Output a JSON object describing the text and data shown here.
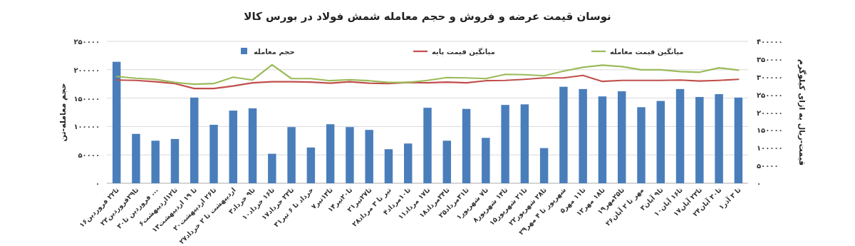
{
  "chart_data": {
    "type": "bar",
    "title": "نوسان قیمت عرضه و فروش و حجم معامله شمش فولاد در بورس کالا",
    "ylabel": "حجم معامله-تن",
    "y2label": "قیمت-ریال به ازای کیلوگرم",
    "categories": [
      "۱۶تا۲۲ فروردین",
      "۲۳تا۲۹فروردین",
      "۳۰فروردین تا ...",
      "۶تا۱۲اردیبهشت",
      "۱۳تا ۱۹ اردیبهشت",
      "۲۰تا۲۶ اردیبهشت",
      "۲۷اردیبهشت تا ۲ خرداد",
      "۳تا۹ خرداد",
      "۱۰تا۱۶ خرداد",
      "۱۷تا۲۳ خرداد",
      "۳۱خرداد تا ۶ تیر",
      "۷تا۱۳تیر",
      "۱۴تا۲۰تیر",
      "۲۱تا۲۷تیر",
      "۲۸تیر تا ۳ مرداد",
      "۴تا۱۰مرداد",
      "۱۱تا۱۷ مرداد",
      "۱۸تا۲۴مرداد",
      "۲۵تا۳۱مرداد",
      "۱تا۷ شهریور",
      "۸تا۱۴ شهریور",
      "۱۵تا۲۱ شهریور",
      "۲۲تا۲۸ شهریور",
      "۲۹شهریور تا ۴ مهر",
      "۵تا۱۱ مهر",
      "۱۲تا۱۸ مهر",
      "۱۹تا۲۵مهر",
      "۲۶مهر تا ۲ آبان",
      "۳تا۹ آبان",
      "۱۰تا۱۶ آبان",
      "۱۷تا۲۳ آبان",
      "۲۴تا۳۰ آبان",
      "۱تا ۳ آذر"
    ],
    "series": [
      {
        "name": "حجم معامله",
        "color": "#4a7ebb",
        "values": [
          214000,
          87000,
          75000,
          78000,
          151000,
          103000,
          128000,
          132000,
          52000,
          99000,
          63000,
          104000,
          99000,
          94000,
          60000,
          70000,
          133000,
          75000,
          131000,
          80000,
          138000,
          139000,
          62000,
          170000,
          166000,
          153000,
          162000,
          134000,
          145000,
          166000,
          152000,
          157000,
          151000
        ]
      },
      {
        "name": "میانگین قیمت پایه",
        "type": "line",
        "axis": "y2",
        "color": "#c0504d",
        "values": [
          291000,
          290000,
          286000,
          281000,
          267000,
          267000,
          274000,
          283000,
          286000,
          286000,
          285000,
          282000,
          286000,
          282000,
          281000,
          284000,
          283000,
          285000,
          283000,
          289000,
          290000,
          293000,
          297000,
          297000,
          304000,
          287000,
          290000,
          290000,
          290000,
          291000,
          288000,
          290000,
          293000
        ]
      },
      {
        "name": "میانگین قیمت معامله",
        "type": "line",
        "axis": "y2",
        "color": "#9bbb59",
        "values": [
          301000,
          296000,
          293000,
          284000,
          279000,
          281000,
          299000,
          291000,
          334000,
          295000,
          295000,
          289000,
          292000,
          289000,
          284000,
          284000,
          290000,
          298000,
          297000,
          295000,
          307000,
          306000,
          303000,
          316000,
          327000,
          333000,
          329000,
          320000,
          320000,
          315000,
          313000,
          325500,
          319000
        ]
      }
    ],
    "ylim": [
      0,
      250000
    ],
    "yticks": [
      {
        "value": 0,
        "label": "۰"
      },
      {
        "value": 50000,
        "label": "۵۰۰۰۰"
      },
      {
        "value": 100000,
        "label": "۱۰۰۰۰۰"
      },
      {
        "value": 150000,
        "label": "۱۵۰۰۰۰"
      },
      {
        "value": 200000,
        "label": "۲۰۰۰۰۰"
      },
      {
        "value": 250000,
        "label": "۲۵۰۰۰۰"
      }
    ],
    "y2lim": [
      0,
      400000
    ],
    "y2ticks": [
      {
        "value": 0,
        "label": "۰"
      },
      {
        "value": 50000,
        "label": "۵۰۰۰۰"
      },
      {
        "value": 100000,
        "label": "۱۰۰۰۰۰"
      },
      {
        "value": 150000,
        "label": "۱۵۰۰۰۰"
      },
      {
        "value": 200000,
        "label": "۲۰۰۰۰۰"
      },
      {
        "value": 250000,
        "label": "۲۵۰۰۰۰"
      },
      {
        "value": 300000,
        "label": "۳۰۰۰۰۰"
      },
      {
        "value": 350000,
        "label": "۳۵۰۰۰۰"
      },
      {
        "value": 400000,
        "label": "۴۰۰۰۰۰"
      }
    ],
    "grid": "y",
    "legend": "top",
    "marker": "none",
    "line_style": "solid"
  }
}
